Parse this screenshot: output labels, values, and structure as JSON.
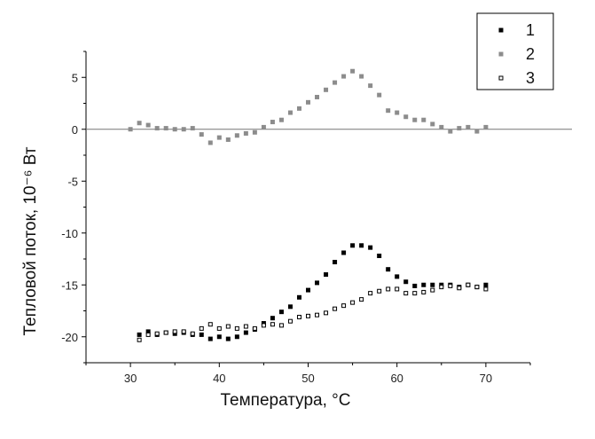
{
  "chart_data": {
    "type": "scatter",
    "xlabel": "Температура,  °C",
    "ylabel": "Тепловой поток,  10⁻⁶ Вт",
    "xlim": [
      25,
      75
    ],
    "ylim": [
      -22.5,
      7.5
    ],
    "x_ticks": [
      30,
      40,
      50,
      60,
      70
    ],
    "y_ticks": [
      5,
      0,
      -5,
      -10,
      -15,
      -20
    ],
    "y_tick_labels": [
      "5",
      "0",
      "-5",
      "-10",
      "-15",
      "-20"
    ],
    "reference_line_y": 0,
    "legend_position": "top-right",
    "series": [
      {
        "name": "1",
        "marker": "filled-square",
        "color": "#000000",
        "x": [
          31,
          32,
          33,
          34,
          35,
          36,
          37,
          38,
          39,
          40,
          41,
          42,
          43,
          44,
          45,
          46,
          47,
          48,
          49,
          50,
          51,
          52,
          53,
          54,
          55,
          56,
          57,
          58,
          59,
          60,
          61,
          62,
          63,
          64,
          65,
          66,
          67,
          68,
          69,
          70
        ],
        "y": [
          -19.8,
          -19.5,
          -19.8,
          -19.6,
          -19.7,
          -19.6,
          -19.8,
          -19.8,
          -20.2,
          -20.0,
          -20.2,
          -20.0,
          -19.6,
          -19.3,
          -18.7,
          -18.2,
          -17.6,
          -17.1,
          -16.2,
          -15.5,
          -14.8,
          -14.0,
          -12.8,
          -11.9,
          -11.2,
          -11.2,
          -11.4,
          -12.2,
          -13.5,
          -14.2,
          -14.7,
          -15.1,
          -15.0,
          -15.0,
          -15.0,
          -15.0,
          -15.2,
          -15.0,
          -15.2,
          -15.0
        ]
      },
      {
        "name": "2",
        "marker": "gray-square",
        "color": "#8c8c8c",
        "x": [
          30,
          31,
          32,
          33,
          34,
          35,
          36,
          37,
          38,
          39,
          40,
          41,
          42,
          43,
          44,
          45,
          46,
          47,
          48,
          49,
          50,
          51,
          52,
          53,
          54,
          55,
          56,
          57,
          58,
          59,
          60,
          61,
          62,
          63,
          64,
          65,
          66,
          67,
          68,
          69,
          70
        ],
        "y": [
          0.0,
          0.6,
          0.4,
          0.1,
          0.1,
          0.0,
          0.0,
          0.1,
          -0.5,
          -1.3,
          -0.8,
          -1.0,
          -0.6,
          -0.4,
          -0.3,
          0.2,
          0.7,
          0.9,
          1.6,
          2.0,
          2.6,
          3.1,
          3.8,
          4.5,
          5.1,
          5.6,
          5.1,
          4.2,
          3.3,
          1.8,
          1.6,
          1.2,
          0.9,
          0.9,
          0.5,
          0.2,
          -0.2,
          0.1,
          0.2,
          -0.2,
          0.2
        ]
      },
      {
        "name": "3",
        "marker": "open-square",
        "color": "#000000",
        "x": [
          31,
          32,
          33,
          34,
          35,
          36,
          37,
          38,
          39,
          40,
          41,
          42,
          43,
          44,
          45,
          46,
          47,
          48,
          49,
          50,
          51,
          52,
          53,
          54,
          55,
          56,
          57,
          58,
          59,
          60,
          61,
          62,
          63,
          64,
          65,
          66,
          67,
          68,
          69,
          70
        ],
        "y": [
          -20.3,
          -19.8,
          -19.7,
          -19.6,
          -19.5,
          -19.5,
          -19.7,
          -19.2,
          -18.8,
          -19.2,
          -19.0,
          -19.2,
          -19.0,
          -19.2,
          -18.9,
          -18.8,
          -18.9,
          -18.5,
          -18.1,
          -18.0,
          -17.9,
          -17.7,
          -17.3,
          -17.0,
          -16.7,
          -16.4,
          -15.8,
          -15.6,
          -15.4,
          -15.4,
          -15.8,
          -15.8,
          -15.7,
          -15.5,
          -15.2,
          -15.1,
          -15.3,
          -15.0,
          -15.2,
          -15.4
        ]
      }
    ]
  }
}
